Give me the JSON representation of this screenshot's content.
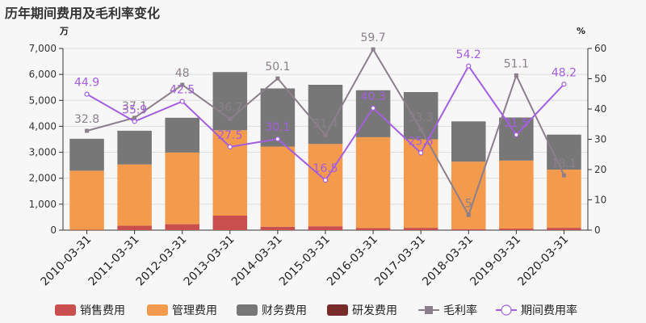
{
  "title": "历年期间费用及毛利率变化",
  "chart_data": {
    "type": "bar",
    "stacked": true,
    "title": "历年期间费用及毛利率变化",
    "ylabel_left": "万",
    "ylabel_right": "%",
    "ylim_left": [
      0,
      7000
    ],
    "ylim_right": [
      0,
      60
    ],
    "yticks_left": [
      "0",
      "1,000",
      "2,000",
      "3,000",
      "4,000",
      "5,000",
      "6,000",
      "7,000"
    ],
    "yticks_right": [
      "0",
      "10",
      "20",
      "30",
      "40",
      "50",
      "60"
    ],
    "categories": [
      "2010-03-31",
      "2011-03-31",
      "2012-03-31",
      "2013-03-31",
      "2014-03-31",
      "2015-03-31",
      "2016-03-31",
      "2017-03-31",
      "2018-03-31",
      "2019-03-31",
      "2020-03-31"
    ],
    "bar_series": [
      {
        "name": "销售费用",
        "color": "#c94f4f",
        "values": [
          15,
          170,
          230,
          560,
          130,
          150,
          80,
          90,
          40,
          60,
          90
        ]
      },
      {
        "name": "管理费用",
        "color": "#f49a4c",
        "values": [
          2275,
          2360,
          2760,
          3290,
          3090,
          3170,
          3500,
          3410,
          2600,
          2620,
          2240
        ]
      },
      {
        "name": "财务费用",
        "color": "#777777",
        "values": [
          1230,
          1300,
          1340,
          2240,
          2240,
          2280,
          1810,
          1820,
          1550,
          1660,
          1350
        ]
      },
      {
        "name": "研发费用",
        "color": "#7a2a2a",
        "values": [
          0,
          0,
          0,
          0,
          0,
          0,
          0,
          0,
          0,
          0,
          0
        ]
      }
    ],
    "line_series": [
      {
        "name": "毛利率",
        "color": "#8c7f8c",
        "values": [
          32.8,
          37.1,
          48,
          36.7,
          50.1,
          31.4,
          59.7,
          33.3,
          5,
          51.1,
          18.1
        ],
        "labels": [
          "32.8",
          "37.1",
          "48",
          "36.7",
          "50.1",
          "31.4",
          "59.7",
          "33.3",
          "5",
          "51.1",
          "18.1"
        ]
      },
      {
        "name": "期间费用率",
        "color": "#a45ee0",
        "values": [
          44.9,
          35.9,
          42.5,
          27.5,
          30.1,
          16.5,
          40.3,
          25.5,
          54.2,
          31.5,
          48.2
        ],
        "labels": [
          "44.9",
          "35.9",
          "42.5",
          "27.5",
          "30.1",
          "16.5",
          "40.3",
          "25.5",
          "54.2",
          "31.5",
          "48.2"
        ]
      }
    ],
    "legend": [
      "销售费用",
      "管理费用",
      "财务费用",
      "研发费用",
      "毛利率",
      "期间费用率"
    ],
    "legend_position": "bottom"
  }
}
